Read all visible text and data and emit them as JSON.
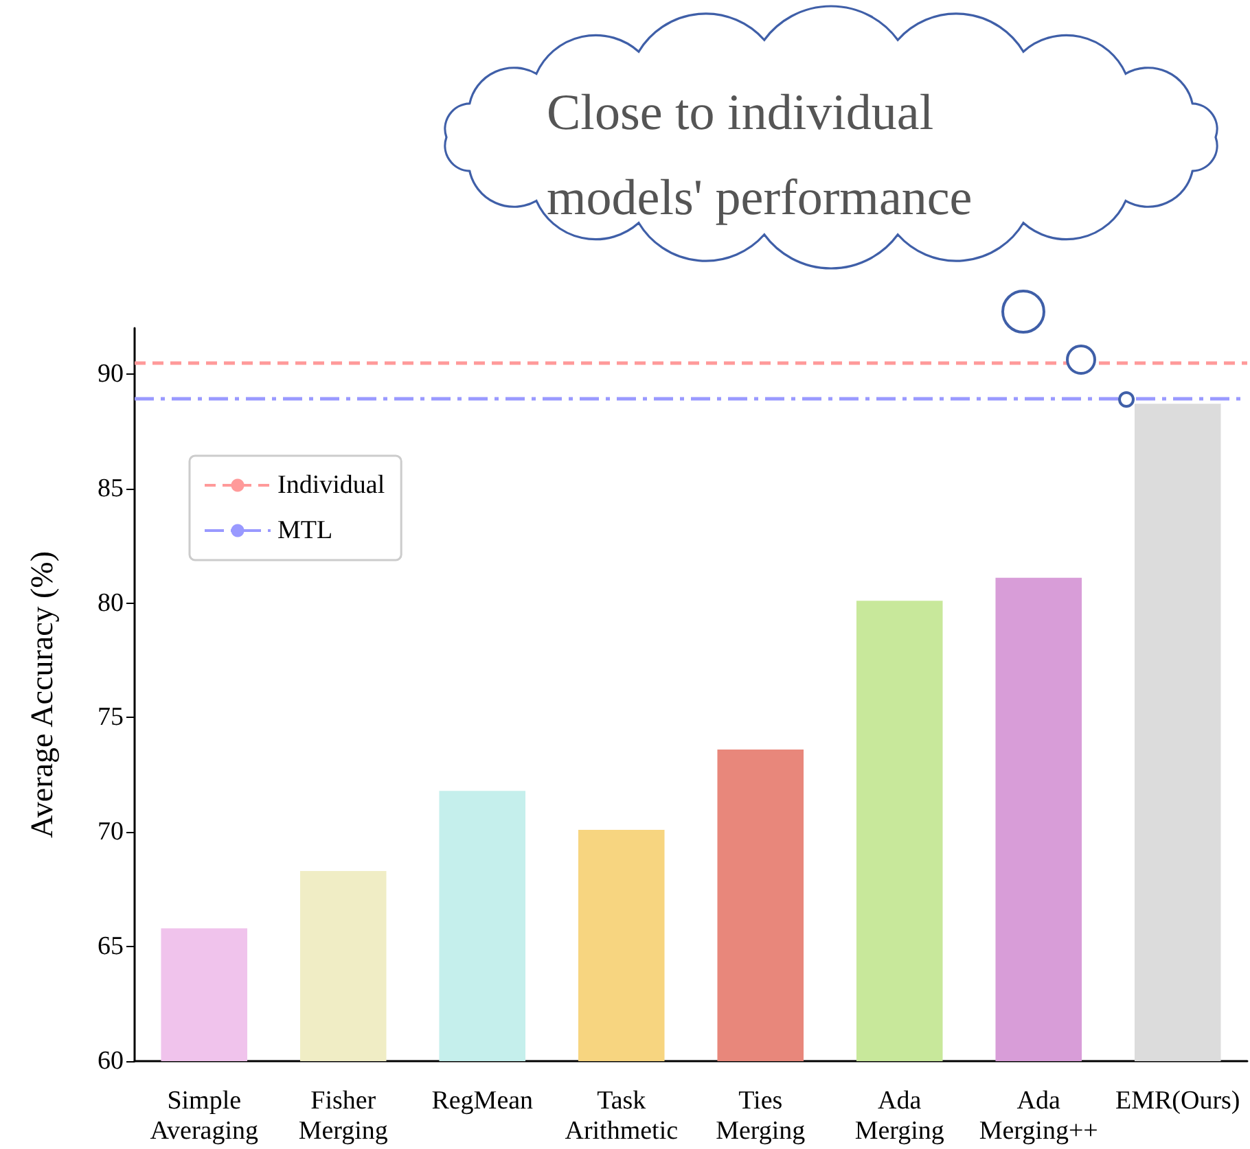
{
  "chart_data": {
    "type": "bar",
    "ylabel": "Average Accuracy (%)",
    "categories": [
      "Simple Averaging",
      "Fisher Merging",
      "RegMean",
      "Task Arithmetic",
      "Ties Merging",
      "Ada Merging",
      "Ada Merging++",
      "EMR(Ours)"
    ],
    "values": [
      65.8,
      68.3,
      71.8,
      70.1,
      73.6,
      80.1,
      81.1,
      88.7
    ],
    "colors": [
      "#f0c3ec",
      "#f0edc5",
      "#c5efec",
      "#f7d580",
      "#e8877b",
      "#c8e89b",
      "#d89dd8",
      "#dcdcdc"
    ],
    "ylim": [
      60,
      92
    ],
    "yticks": [
      60,
      65,
      70,
      75,
      80,
      85,
      90
    ],
    "ref_lines": [
      {
        "axis": "y",
        "value": 90.5,
        "label": "Individual",
        "color": "#ff9a9a",
        "line_style": "dashed"
      },
      {
        "axis": "y",
        "value": 88.9,
        "label": "MTL",
        "color": "#9999ff",
        "line_style": "dashdot"
      }
    ],
    "legend": "top left",
    "annotations": [
      "Close to individual models' performance"
    ]
  }
}
